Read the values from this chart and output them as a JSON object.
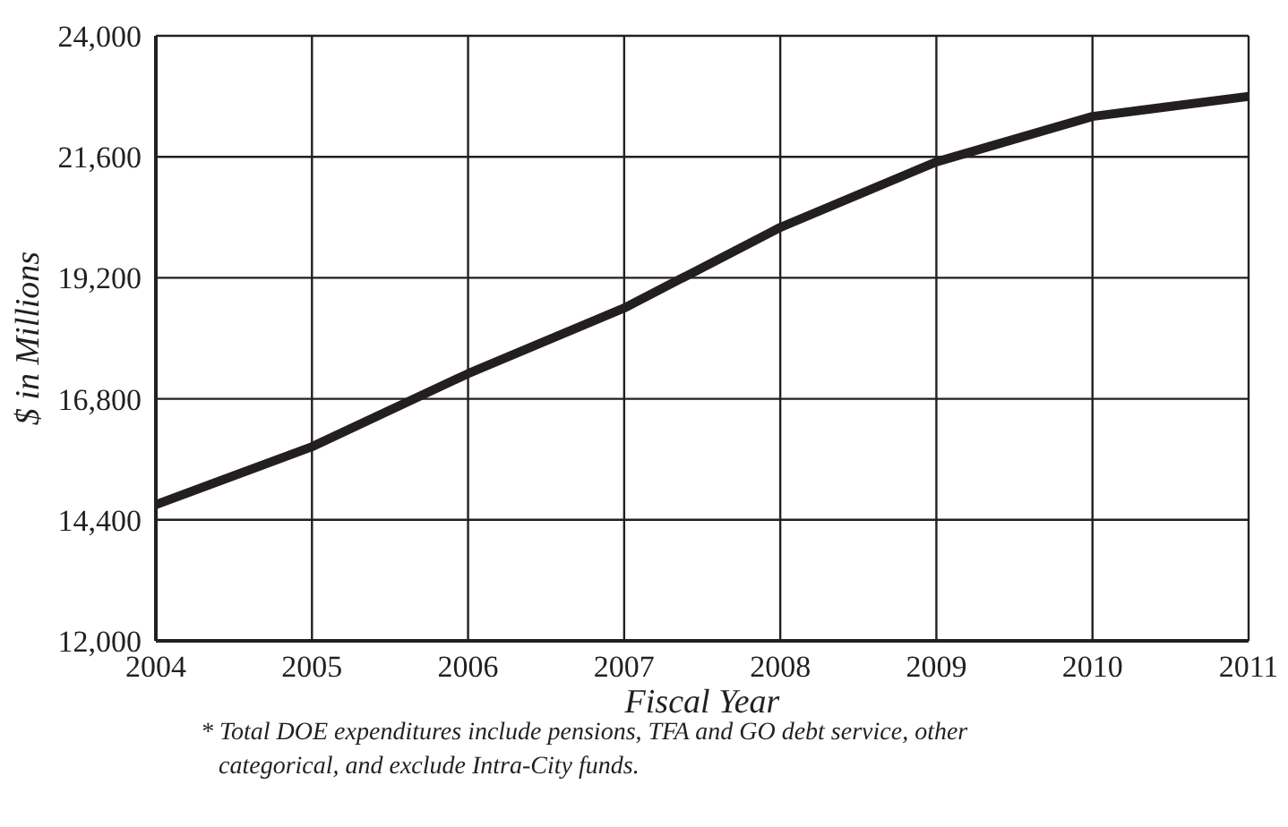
{
  "chart_data": {
    "type": "line",
    "xlabel": "Fiscal Year",
    "ylabel": "$ in Millions",
    "x": [
      2004,
      2005,
      2006,
      2007,
      2008,
      2009,
      2010,
      2011
    ],
    "series": [
      {
        "color": "#231f20",
        "values": [
          14700,
          15850,
          17300,
          18600,
          20200,
          21500,
          22400,
          22800
        ]
      }
    ],
    "xlim": [
      2004,
      2011
    ],
    "xticks": [
      2004,
      2005,
      2006,
      2007,
      2008,
      2009,
      2010,
      2011
    ],
    "ylim": [
      12000,
      24000
    ],
    "yticks": [
      {
        "value": 12000,
        "label": "12,000"
      },
      {
        "value": 14400,
        "label": "14,400"
      },
      {
        "value": 16800,
        "label": "16,800"
      },
      {
        "value": 19200,
        "label": "19,200"
      },
      {
        "value": 21600,
        "label": "21,600"
      },
      {
        "value": 24000,
        "label": "24,000"
      }
    ],
    "grid": true,
    "legend": false,
    "marker": "none",
    "line_style": "solid",
    "annotations": [
      "* Total DOE expenditures include pensions, TFA and GO debt service, other categorical, and exclude Intra-City funds."
    ]
  }
}
